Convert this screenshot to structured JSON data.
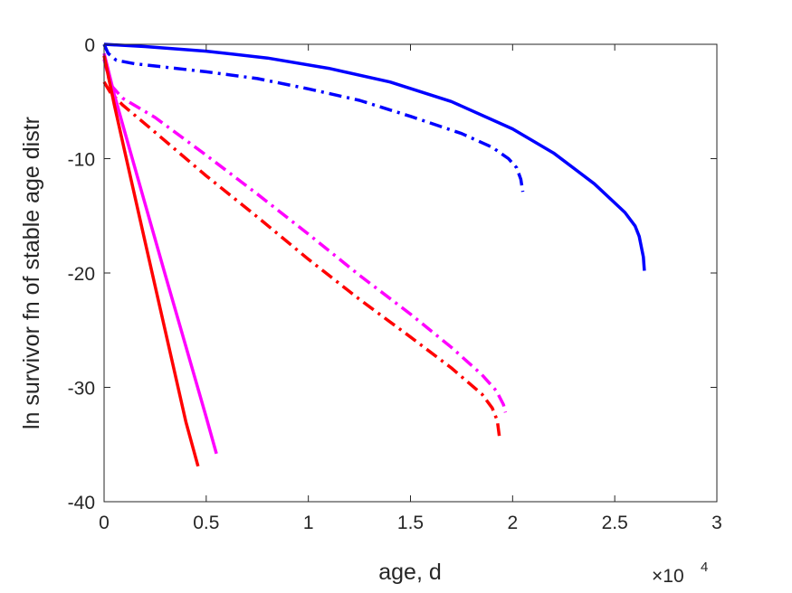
{
  "chart_data": {
    "type": "line",
    "xlabel": "age, d",
    "ylabel": "ln survivor fn of stable age distr",
    "x_exponent_label": "×10",
    "x_exponent_power": "4",
    "xlim": [
      0,
      30000
    ],
    "ylim": [
      -40,
      0
    ],
    "xticks": [
      0,
      5000,
      10000,
      15000,
      20000,
      25000,
      30000
    ],
    "xtick_labels": [
      "0",
      "0.5",
      "1",
      "1.5",
      "2",
      "2.5",
      "3"
    ],
    "yticks": [
      0,
      -10,
      -20,
      -30,
      -40
    ],
    "ytick_labels": [
      "0",
      "-10",
      "-20",
      "-30",
      "-40"
    ],
    "grid": false,
    "series": [
      {
        "color": "#0000ff",
        "dash": "solid",
        "x": [
          0,
          2000,
          5000,
          8000,
          11000,
          14000,
          17000,
          20000,
          22000,
          24000,
          25500,
          26000,
          26200,
          26400,
          26450
        ],
        "y": [
          0,
          -0.2,
          -0.6,
          -1.2,
          -2.1,
          -3.3,
          -5.0,
          -7.4,
          -9.5,
          -12.2,
          -14.7,
          -15.9,
          -16.8,
          -18.6,
          -19.8
        ]
      },
      {
        "color": "#0000ff",
        "dash": "dashdot",
        "x": [
          0,
          200,
          600,
          1500,
          3000,
          5000,
          7500,
          10000,
          12500,
          15000,
          17500,
          19000,
          19800,
          20200,
          20400,
          20500
        ],
        "y": [
          0,
          -0.8,
          -1.4,
          -1.7,
          -2.0,
          -2.4,
          -3.0,
          -3.9,
          -4.9,
          -6.3,
          -7.8,
          -9.0,
          -10.0,
          -10.8,
          -11.8,
          -12.9
        ]
      },
      {
        "color": "#ff00ff",
        "dash": "dashdot",
        "x": [
          0,
          300,
          900,
          2500,
          5000,
          7500,
          10000,
          12500,
          15000,
          17000,
          18500,
          19200,
          19550,
          19650
        ],
        "y": [
          -1.3,
          -3.5,
          -4.7,
          -6.4,
          -9.7,
          -13.1,
          -16.6,
          -20.2,
          -23.6,
          -26.5,
          -28.9,
          -30.3,
          -31.5,
          -32.2
        ]
      },
      {
        "color": "#ff0000",
        "dash": "dashdot",
        "x": [
          0,
          300,
          900,
          2500,
          5000,
          7500,
          10000,
          12500,
          15000,
          17000,
          18500,
          19000,
          19250,
          19350
        ],
        "y": [
          -3.3,
          -4.2,
          -5.3,
          -7.7,
          -11.5,
          -15.1,
          -18.8,
          -22.3,
          -25.6,
          -28.3,
          -30.6,
          -31.8,
          -32.9,
          -34.3
        ]
      },
      {
        "color": "#ff00ff",
        "dash": "solid",
        "x": [
          0,
          500,
          1000,
          2000,
          3000,
          4000,
          5000,
          5500
        ],
        "y": [
          -0.8,
          -4.4,
          -7.6,
          -13.9,
          -20.2,
          -26.4,
          -32.6,
          -35.8
        ]
      },
      {
        "color": "#ff0000",
        "dash": "solid",
        "x": [
          0,
          500,
          1000,
          2000,
          3000,
          4000,
          4600
        ],
        "y": [
          -1.0,
          -5.3,
          -9.3,
          -17.2,
          -25.1,
          -33.0,
          -36.9
        ]
      }
    ]
  }
}
